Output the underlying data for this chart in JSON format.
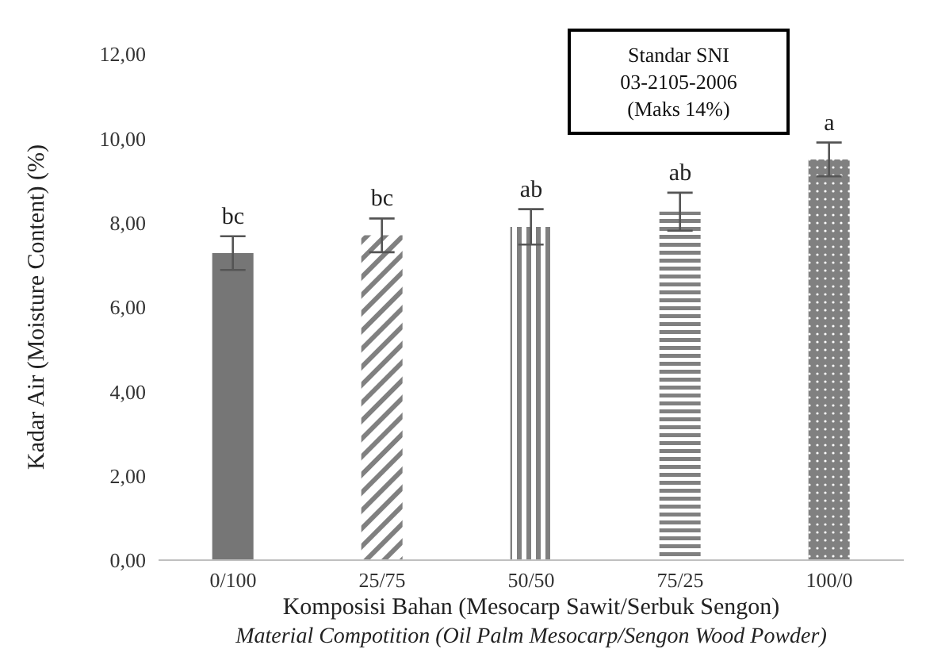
{
  "chart_data": {
    "type": "bar",
    "xlabel": "Komposisi Bahan (Mesocarp Sawit/Serbuk Sengon)\nMaterial Compotition (Oil Palm Mesocarp/Sengon Wood Powder)",
    "ylabel": "Kadar Air (Moisture Content) (%)",
    "categories": [
      "0/100",
      "25/75",
      "50/50",
      "75/25",
      "100/0"
    ],
    "values": [
      7.28,
      7.7,
      7.9,
      8.26,
      9.5
    ],
    "errors": [
      0.4,
      0.4,
      0.42,
      0.45,
      0.4
    ],
    "colors": [
      "#767676",
      "#808080",
      "#808080",
      "#808080",
      "#808080"
    ],
    "ylim": [
      0,
      12
    ],
    "yticks": [
      {
        "value": 0,
        "label": "0,00"
      },
      {
        "value": 2,
        "label": "2,00"
      },
      {
        "value": 4,
        "label": "4,00"
      },
      {
        "value": 6,
        "label": "6,00"
      },
      {
        "value": 8,
        "label": "8,00"
      },
      {
        "value": 10,
        "label": "10,00"
      },
      {
        "value": 12,
        "label": "12,00"
      }
    ],
    "grid": false,
    "legend": false,
    "annotations": [
      {
        "text": "bc",
        "x": "0/100",
        "y": 7.68
      },
      {
        "text": "bc",
        "x": "25/75",
        "y": 8.1
      },
      {
        "text": "ab",
        "x": "50/50",
        "y": 8.32
      },
      {
        "text": "ab",
        "x": "75/25",
        "y": 8.71
      },
      {
        "text": "a",
        "x": "100/0",
        "y": 9.9
      },
      "Standar SNI\n03-2105-2006\n(Maks 14%)"
    ]
  }
}
